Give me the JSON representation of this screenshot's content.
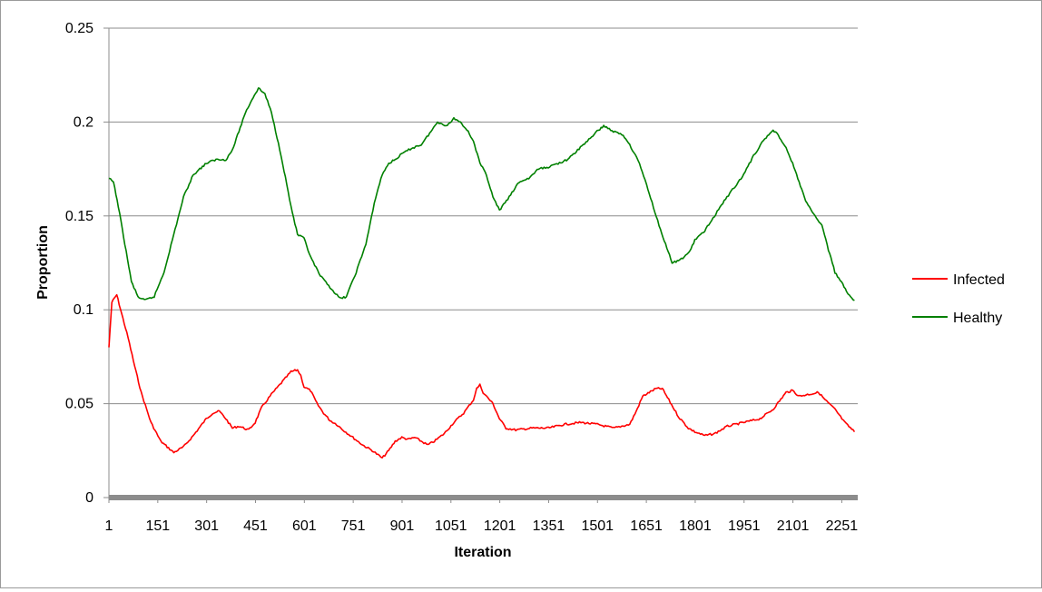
{
  "chart_data": {
    "type": "line",
    "title": "",
    "xlabel": "Iteration",
    "ylabel": "Proportion",
    "xlim": [
      1,
      2300
    ],
    "ylim": [
      0,
      0.25
    ],
    "grid": "horizontal",
    "legend_position": "right",
    "x_tick_labels": [
      "1",
      "151",
      "301",
      "451",
      "601",
      "751",
      "901",
      "1051",
      "1201",
      "1351",
      "1501",
      "1651",
      "1801",
      "1951",
      "2101",
      "2251"
    ],
    "y_tick_labels": [
      "0",
      "0.05",
      "0.1",
      "0.15",
      "0.2",
      "0.25"
    ],
    "y_tick_values": [
      0,
      0.05,
      0.1,
      0.15,
      0.2,
      0.25
    ],
    "series": [
      {
        "name": "Infected",
        "color": "#ff0000",
        "x": [
          1,
          10,
          25,
          40,
          60,
          80,
          100,
          130,
          160,
          200,
          230,
          260,
          300,
          320,
          340,
          360,
          380,
          400,
          430,
          450,
          470,
          500,
          530,
          560,
          580,
          590,
          600,
          620,
          640,
          660,
          680,
          700,
          720,
          750,
          780,
          810,
          840,
          860,
          880,
          900,
          920,
          940,
          960,
          980,
          1000,
          1030,
          1060,
          1090,
          1120,
          1130,
          1140,
          1150,
          1160,
          1180,
          1200,
          1220,
          1250,
          1300,
          1350,
          1400,
          1450,
          1500,
          1550,
          1600,
          1620,
          1640,
          1660,
          1680,
          1700,
          1720,
          1750,
          1780,
          1800,
          1830,
          1860,
          1880,
          1900,
          1950,
          2000,
          2040,
          2080,
          2100,
          2120,
          2150,
          2180,
          2200,
          2230,
          2260,
          2290
        ],
        "y": [
          0.08,
          0.104,
          0.108,
          0.098,
          0.085,
          0.07,
          0.056,
          0.04,
          0.03,
          0.024,
          0.027,
          0.033,
          0.042,
          0.045,
          0.046,
          0.042,
          0.037,
          0.038,
          0.036,
          0.04,
          0.048,
          0.055,
          0.061,
          0.067,
          0.068,
          0.065,
          0.059,
          0.057,
          0.05,
          0.045,
          0.041,
          0.039,
          0.036,
          0.032,
          0.028,
          0.025,
          0.021,
          0.025,
          0.03,
          0.032,
          0.031,
          0.032,
          0.03,
          0.028,
          0.03,
          0.034,
          0.04,
          0.045,
          0.052,
          0.058,
          0.06,
          0.056,
          0.054,
          0.05,
          0.042,
          0.037,
          0.036,
          0.037,
          0.037,
          0.039,
          0.04,
          0.039,
          0.037,
          0.039,
          0.046,
          0.054,
          0.056,
          0.058,
          0.058,
          0.052,
          0.043,
          0.037,
          0.035,
          0.033,
          0.034,
          0.036,
          0.038,
          0.04,
          0.042,
          0.047,
          0.056,
          0.057,
          0.054,
          0.055,
          0.056,
          0.052,
          0.047,
          0.04,
          0.035
        ]
      },
      {
        "name": "Healthy",
        "color": "#008000",
        "x": [
          1,
          15,
          30,
          50,
          70,
          90,
          110,
          140,
          170,
          200,
          230,
          260,
          280,
          300,
          330,
          360,
          380,
          400,
          420,
          440,
          460,
          480,
          500,
          530,
          560,
          580,
          600,
          620,
          650,
          680,
          710,
          730,
          760,
          790,
          820,
          840,
          860,
          880,
          900,
          930,
          960,
          990,
          1010,
          1040,
          1060,
          1080,
          1100,
          1120,
          1140,
          1160,
          1180,
          1200,
          1230,
          1260,
          1290,
          1320,
          1350,
          1380,
          1410,
          1440,
          1470,
          1500,
          1520,
          1550,
          1580,
          1600,
          1630,
          1660,
          1690,
          1710,
          1730,
          1750,
          1780,
          1800,
          1830,
          1860,
          1890,
          1920,
          1950,
          1980,
          2010,
          2040,
          2060,
          2080,
          2100,
          2120,
          2140,
          2160,
          2190,
          2210,
          2230,
          2250,
          2270,
          2290
        ],
        "y": [
          0.17,
          0.168,
          0.155,
          0.135,
          0.115,
          0.107,
          0.105,
          0.107,
          0.12,
          0.14,
          0.16,
          0.172,
          0.175,
          0.178,
          0.18,
          0.18,
          0.185,
          0.195,
          0.205,
          0.212,
          0.218,
          0.215,
          0.205,
          0.182,
          0.155,
          0.14,
          0.138,
          0.128,
          0.118,
          0.112,
          0.106,
          0.107,
          0.12,
          0.135,
          0.16,
          0.172,
          0.178,
          0.18,
          0.183,
          0.186,
          0.188,
          0.195,
          0.2,
          0.198,
          0.202,
          0.2,
          0.196,
          0.19,
          0.178,
          0.172,
          0.16,
          0.153,
          0.16,
          0.168,
          0.17,
          0.175,
          0.176,
          0.178,
          0.18,
          0.185,
          0.19,
          0.195,
          0.198,
          0.195,
          0.193,
          0.188,
          0.178,
          0.162,
          0.145,
          0.135,
          0.125,
          0.126,
          0.13,
          0.137,
          0.142,
          0.15,
          0.158,
          0.165,
          0.172,
          0.182,
          0.19,
          0.196,
          0.192,
          0.186,
          0.178,
          0.168,
          0.158,
          0.152,
          0.145,
          0.132,
          0.12,
          0.115,
          0.108,
          0.105
        ]
      }
    ]
  }
}
